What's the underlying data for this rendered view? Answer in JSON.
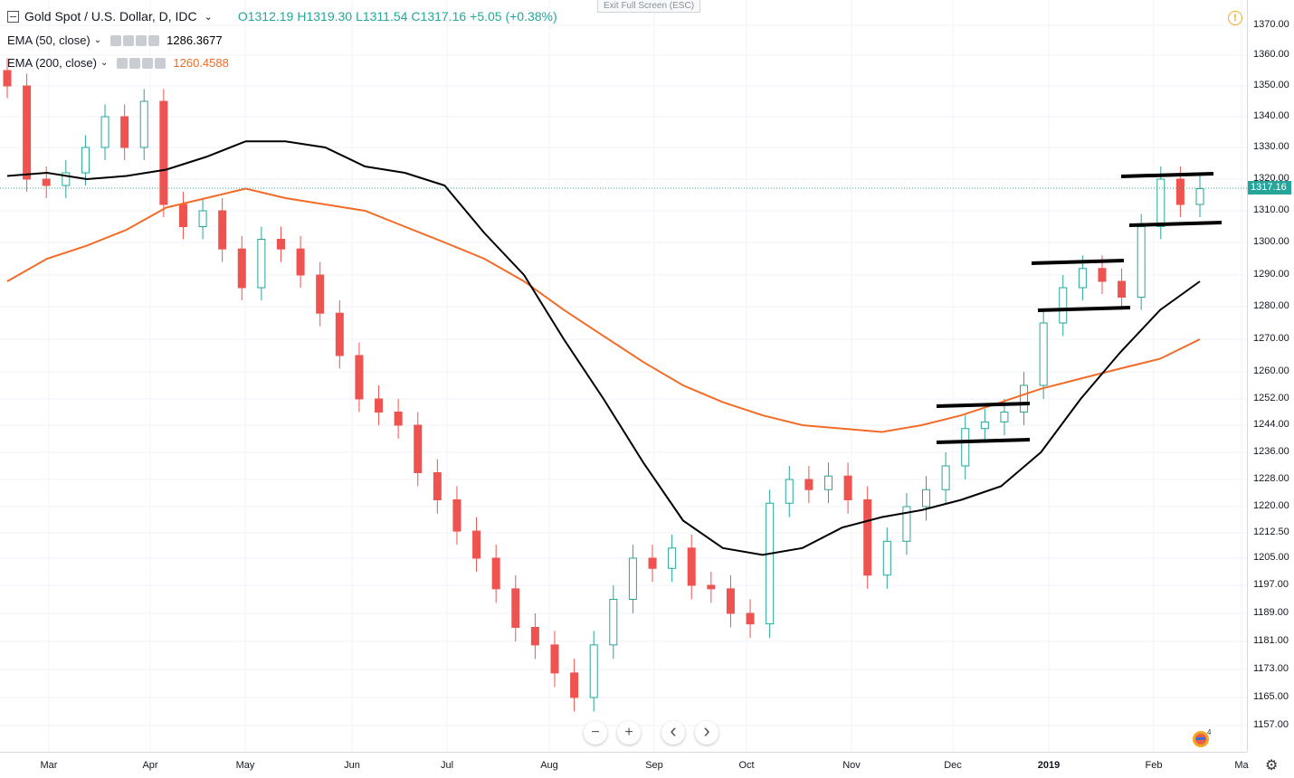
{
  "header": {
    "symbol": "Gold Spot / U.S. Dollar, D, IDC",
    "open": "O1312.19",
    "high": "H1319.30",
    "low": "L1311.54",
    "close": "C1317.16",
    "change": "+5.05 (+0.38%)",
    "fullscreen_tip": "Exit Full Screen (ESC)",
    "warning_symbol": "!"
  },
  "indicators": [
    {
      "label": "EMA (50, close)",
      "value": "1286.3677",
      "color": "#000000"
    },
    {
      "label": "EMA (200, close)",
      "value": "1260.4588",
      "color": "#f26b27"
    }
  ],
  "price_axis": {
    "labels": [
      "1370.00",
      "1360.00",
      "1350.00",
      "1340.00",
      "1330.00",
      "1320.00",
      "1310.00",
      "1300.00",
      "1290.00",
      "1280.00",
      "1270.00",
      "1260.00",
      "1252.00",
      "1244.00",
      "1236.00",
      "1228.00",
      "1220.00",
      "1212.50",
      "1205.00",
      "1197.00",
      "1189.00",
      "1181.00",
      "1173.00",
      "1165.00",
      "1157.00"
    ],
    "last_price": "1317.16"
  },
  "time_axis": {
    "labels": [
      "Mar",
      "Apr",
      "May",
      "Jun",
      "Jul",
      "Aug",
      "Sep",
      "Oct",
      "Nov",
      "Dec",
      "2019",
      "Feb",
      "Ma"
    ]
  },
  "controls": {
    "zoom_out": "−",
    "zoom_in": "+",
    "scroll_left": "‹",
    "scroll_right": "›",
    "logo_badge": "4"
  },
  "colors": {
    "up": "#26a69a",
    "down": "#ef5350",
    "ema50": "#000000",
    "ema200": "#f26b27",
    "last_price": "#26a69a"
  },
  "chart_data": {
    "type": "candlestick",
    "title": "Gold Spot / U.S. Dollar, D, IDC",
    "xlabel": "",
    "ylabel": "",
    "period": "Mar 2018 – Feb 2019",
    "ylim": [
      1157,
      1370
    ],
    "series": [
      {
        "name": "EMA (50, close)",
        "values": [
          1321,
          1322,
          1320,
          1321,
          1323,
          1327,
          1332,
          1332,
          1330,
          1324,
          1322,
          1318,
          1303,
          1290,
          1270,
          1252,
          1233,
          1216,
          1208,
          1206,
          1208,
          1214,
          1217,
          1219,
          1222,
          1226,
          1236,
          1252,
          1266,
          1279,
          1288
        ]
      },
      {
        "name": "EMA (200, close)",
        "values": [
          1288,
          1295,
          1299,
          1304,
          1311,
          1314,
          1317,
          1314,
          1312,
          1310,
          1305,
          1300,
          1295,
          1288,
          1279,
          1271,
          1263,
          1256,
          1251,
          1247,
          1244,
          1243,
          1242,
          1244,
          1247,
          1251,
          1255,
          1258,
          1261,
          1264,
          1270
        ]
      }
    ],
    "close": [
      1350,
      1320,
      1318,
      1322,
      1330,
      1340,
      1330,
      1345,
      1312,
      1305,
      1310,
      1298,
      1286,
      1301,
      1298,
      1290,
      1278,
      1265,
      1252,
      1248,
      1244,
      1230,
      1222,
      1213,
      1205,
      1196,
      1185,
      1180,
      1172,
      1165,
      1180,
      1193,
      1205,
      1202,
      1208,
      1197,
      1196,
      1189,
      1186,
      1221,
      1228,
      1225,
      1229,
      1222,
      1200,
      1210,
      1220,
      1225,
      1232,
      1243,
      1245,
      1248,
      1256,
      1275,
      1286,
      1292,
      1288,
      1283,
      1305,
      1320,
      1312,
      1317
    ]
  }
}
